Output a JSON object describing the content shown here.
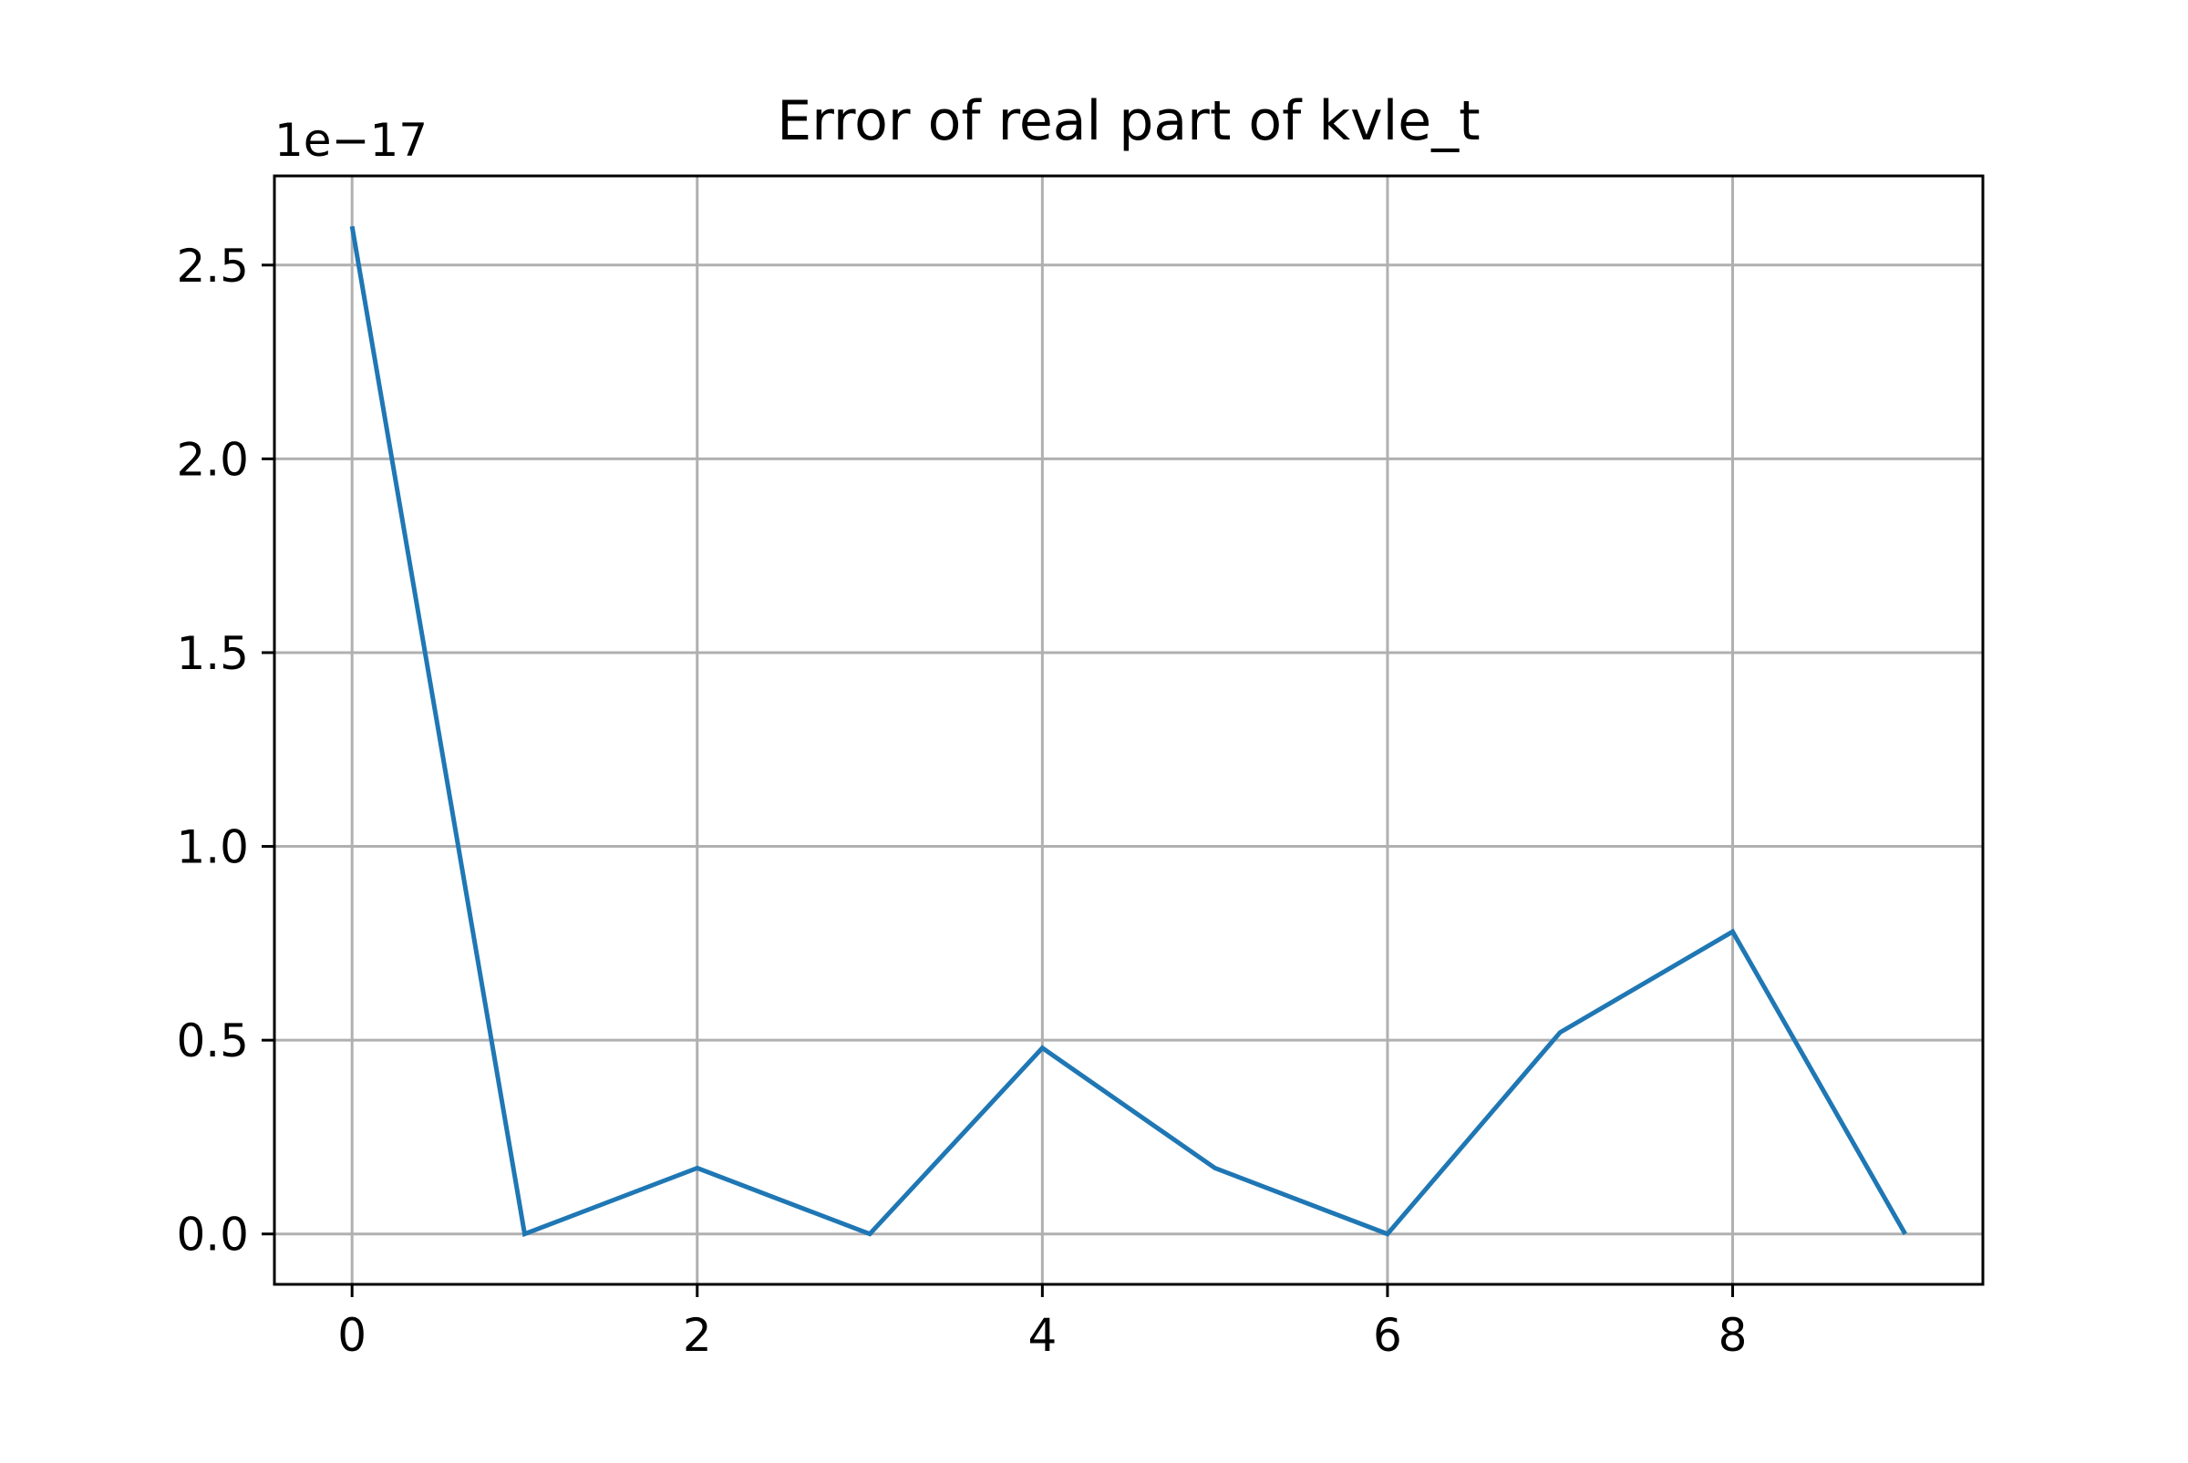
{
  "chart_data": {
    "type": "line",
    "title": "Error of real part of kvle_t",
    "xlabel": "",
    "ylabel": "",
    "y_offset_label": "1e−17",
    "x": [
      0,
      1,
      2,
      3,
      4,
      5,
      6,
      7,
      8,
      9
    ],
    "series": [
      {
        "values": [
          2.6,
          0.0,
          0.17,
          0.0,
          0.48,
          0.17,
          0.0,
          0.52,
          0.78,
          0.0
        ],
        "color": "#1f77b4"
      }
    ],
    "xlim": [
      -0.45,
      9.45
    ],
    "ylim": [
      -0.13,
      2.73
    ],
    "xticks": [
      0,
      2,
      4,
      6,
      8
    ],
    "xtick_labels": [
      "0",
      "2",
      "4",
      "6",
      "8"
    ],
    "yticks": [
      0.0,
      0.5,
      1.0,
      1.5,
      2.0,
      2.5
    ],
    "ytick_labels": [
      "0.0",
      "0.5",
      "1.0",
      "1.5",
      "2.0",
      "2.5"
    ],
    "grid": true,
    "grid_color": "#b0b0b0",
    "frame_color": "#000000"
  }
}
